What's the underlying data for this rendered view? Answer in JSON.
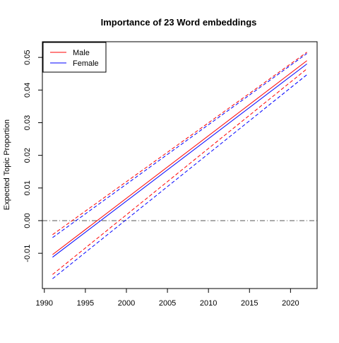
{
  "chart_data": {
    "type": "line",
    "title": "Importance of 23 Word embeddings",
    "xlabel": "",
    "ylabel": "Expected Topic Proportion",
    "xlim": [
      1991,
      2022
    ],
    "ylim": [
      -0.018,
      0.052
    ],
    "x_ticks": [
      1990,
      1995,
      2000,
      2005,
      2010,
      2015,
      2020
    ],
    "y_ticks": [
      -0.01,
      0.0,
      0.01,
      0.02,
      0.03,
      0.04,
      0.05
    ],
    "y_tick_labels": [
      "-0.01",
      "0.00",
      "0.01",
      "0.02",
      "0.03",
      "0.04",
      "0.05"
    ],
    "grid": false,
    "legend_position": "top-left",
    "reference_line": {
      "y": 0.0,
      "style": "dash-dot",
      "color": "#555555"
    },
    "series": [
      {
        "name": "Male",
        "color": "#ff0000",
        "x": [
          1991,
          2022
        ],
        "mean": [
          -0.0104,
          0.049
        ],
        "lower": [
          -0.0165,
          0.0465
        ],
        "upper": [
          -0.0043,
          0.0516
        ]
      },
      {
        "name": "Female",
        "color": "#0000ff",
        "x": [
          1991,
          2022
        ],
        "mean": [
          -0.0112,
          0.048
        ],
        "lower": [
          -0.0178,
          0.0447
        ],
        "upper": [
          -0.0052,
          0.0512
        ]
      }
    ]
  }
}
